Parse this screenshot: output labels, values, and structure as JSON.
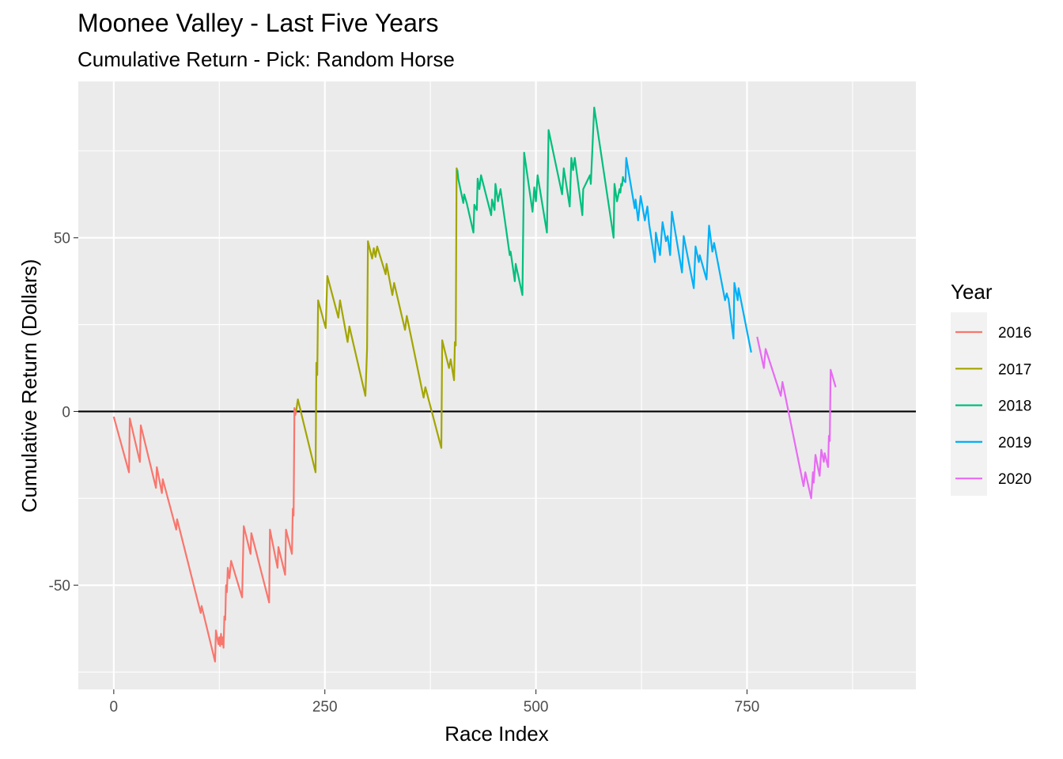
{
  "chart_data": {
    "type": "line",
    "title": "Moonee Valley - Last Five Years",
    "subtitle": "Cumulative Return - Pick: Random Horse",
    "xlabel": "Race Index",
    "ylabel": "Cumulative Return (Dollars)",
    "xlim": [
      -42,
      950
    ],
    "ylim": [
      -80,
      95
    ],
    "x_ticks": [
      0,
      250,
      500,
      750
    ],
    "y_ticks": [
      -50,
      0,
      50
    ],
    "x_tick_labels": [
      "0",
      "250",
      "500",
      "750"
    ],
    "y_tick_labels": [
      "-50",
      "0",
      "50"
    ],
    "grid": true,
    "background_color": "#EBEBEB",
    "reference_line": {
      "y": 0,
      "color": "#000000"
    },
    "legend": {
      "title": "Year",
      "position": "right"
    },
    "series": [
      {
        "name": "2016",
        "color": "#F8766D",
        "points": [
          [
            0,
            -1.5
          ],
          [
            18,
            -17.5
          ],
          [
            19,
            -2
          ],
          [
            31,
            -14.5
          ],
          [
            32,
            -4
          ],
          [
            50,
            -22
          ],
          [
            51,
            -16
          ],
          [
            57,
            -23.5
          ],
          [
            58,
            -19.5
          ],
          [
            74,
            -34
          ],
          [
            75,
            -31
          ],
          [
            103,
            -58
          ],
          [
            104,
            -56
          ],
          [
            120,
            -72
          ],
          [
            121,
            -63
          ],
          [
            124,
            -67
          ],
          [
            125,
            -65
          ],
          [
            126,
            -67.5
          ],
          [
            127,
            -64
          ],
          [
            128,
            -67
          ],
          [
            129,
            -65
          ],
          [
            130,
            -68
          ],
          [
            131,
            -59
          ],
          [
            132,
            -60
          ],
          [
            133,
            -50
          ],
          [
            134,
            -52
          ],
          [
            135,
            -45
          ],
          [
            137,
            -48
          ],
          [
            139,
            -43
          ],
          [
            152,
            -53.5
          ],
          [
            154,
            -33
          ],
          [
            162,
            -41
          ],
          [
            163,
            -35
          ],
          [
            184,
            -55
          ],
          [
            185,
            -34
          ],
          [
            194,
            -45
          ],
          [
            195,
            -39
          ],
          [
            203,
            -47
          ],
          [
            204,
            -34
          ],
          [
            211,
            -41
          ],
          [
            212,
            -28
          ],
          [
            213,
            -30
          ],
          [
            214,
            1
          ],
          [
            215,
            -1
          ],
          [
            216,
            0
          ]
        ]
      },
      {
        "name": "2017",
        "color": "#A3A500",
        "points": [
          [
            216,
            0
          ],
          [
            218,
            3.5
          ],
          [
            239,
            -17.5
          ],
          [
            240,
            14
          ],
          [
            241,
            10.5
          ],
          [
            242,
            32
          ],
          [
            251,
            24
          ],
          [
            253,
            39
          ],
          [
            266,
            27
          ],
          [
            268,
            32
          ],
          [
            277,
            20
          ],
          [
            279,
            24.5
          ],
          [
            298,
            4.5
          ],
          [
            300,
            18
          ],
          [
            301,
            49
          ],
          [
            306,
            44
          ],
          [
            308,
            47
          ],
          [
            310,
            44.5
          ],
          [
            312,
            47.5
          ],
          [
            322,
            39.5
          ],
          [
            323,
            42.5
          ],
          [
            330,
            33.5
          ],
          [
            332,
            37
          ],
          [
            345,
            23.5
          ],
          [
            347,
            27.5
          ],
          [
            367,
            4
          ],
          [
            369,
            7
          ],
          [
            388,
            -10.5
          ],
          [
            389,
            20.5
          ],
          [
            397,
            12.5
          ],
          [
            399,
            15
          ],
          [
            403,
            9
          ],
          [
            404,
            20
          ],
          [
            405,
            19
          ],
          [
            406,
            70
          ],
          [
            407,
            69.5
          ]
        ]
      },
      {
        "name": "2018",
        "color": "#00BF7D",
        "points": [
          [
            407,
            69.5
          ],
          [
            408,
            67
          ],
          [
            414,
            60
          ],
          [
            415,
            62.5
          ],
          [
            418,
            60
          ],
          [
            426,
            51.5
          ],
          [
            427,
            59.5
          ],
          [
            430,
            58
          ],
          [
            431,
            67
          ],
          [
            433,
            64
          ],
          [
            435,
            68
          ],
          [
            447,
            56.5
          ],
          [
            448,
            61
          ],
          [
            451,
            58
          ],
          [
            452,
            65.5
          ],
          [
            455,
            60.5
          ],
          [
            458,
            64
          ],
          [
            469,
            45
          ],
          [
            470,
            46
          ],
          [
            475,
            37.5
          ],
          [
            476,
            42.5
          ],
          [
            484,
            33.5
          ],
          [
            486,
            74.5
          ],
          [
            496,
            57.5
          ],
          [
            498,
            64.5
          ],
          [
            500,
            60.5
          ],
          [
            502,
            68
          ],
          [
            513,
            51.5
          ],
          [
            515,
            81
          ],
          [
            531,
            62.5
          ],
          [
            533,
            70
          ],
          [
            540,
            59
          ],
          [
            542,
            73
          ],
          [
            544,
            69.5
          ],
          [
            546,
            73
          ],
          [
            555,
            56.5
          ],
          [
            556,
            64
          ],
          [
            564,
            68
          ],
          [
            565,
            65.5
          ],
          [
            569,
            87.5
          ],
          [
            592,
            50
          ],
          [
            593,
            65.5
          ],
          [
            596,
            60.5
          ],
          [
            599,
            64
          ],
          [
            600,
            63
          ],
          [
            601,
            65.5
          ],
          [
            602,
            65
          ],
          [
            603,
            67.5
          ],
          [
            604,
            66.5
          ]
        ]
      },
      {
        "name": "2019",
        "color": "#00B0F6",
        "points": [
          [
            604,
            66.5
          ],
          [
            606,
            66
          ],
          [
            607,
            73
          ],
          [
            617,
            58.5
          ],
          [
            618,
            61
          ],
          [
            621,
            55
          ],
          [
            624,
            62
          ],
          [
            629,
            55
          ],
          [
            632,
            59
          ],
          [
            634,
            54
          ],
          [
            641,
            43
          ],
          [
            642,
            51.5
          ],
          [
            647,
            45
          ],
          [
            650,
            54.5
          ],
          [
            654,
            49
          ],
          [
            656,
            50.5
          ],
          [
            659,
            45
          ],
          [
            661,
            57.5
          ],
          [
            673,
            40
          ],
          [
            675,
            50.5
          ],
          [
            687,
            35.5
          ],
          [
            689,
            47.5
          ],
          [
            693,
            43
          ],
          [
            694,
            45
          ],
          [
            702,
            38
          ],
          [
            705,
            53.5
          ],
          [
            709,
            46
          ],
          [
            711,
            48.5
          ],
          [
            724,
            32
          ],
          [
            726,
            34
          ],
          [
            727,
            33
          ],
          [
            728,
            32.5
          ],
          [
            734,
            21
          ],
          [
            735,
            37
          ],
          [
            739,
            32
          ],
          [
            740,
            35.5
          ],
          [
            755,
            17
          ]
        ]
      },
      {
        "name": "2020",
        "color": "#E76BF3",
        "points": [
          [
            762,
            21.5
          ],
          [
            770,
            12.5
          ],
          [
            772,
            18
          ],
          [
            790,
            4.5
          ],
          [
            792,
            8.5
          ],
          [
            817,
            -21.5
          ],
          [
            819,
            -17.5
          ],
          [
            826,
            -25
          ],
          [
            828,
            -17.5
          ],
          [
            829,
            -20.5
          ],
          [
            831,
            -12.5
          ],
          [
            836,
            -18.5
          ],
          [
            838,
            -11
          ],
          [
            841,
            -14.5
          ],
          [
            842,
            -12
          ],
          [
            846,
            -16
          ],
          [
            847,
            -7
          ],
          [
            848,
            -8.5
          ],
          [
            849,
            12
          ],
          [
            855,
            7
          ]
        ]
      }
    ]
  }
}
